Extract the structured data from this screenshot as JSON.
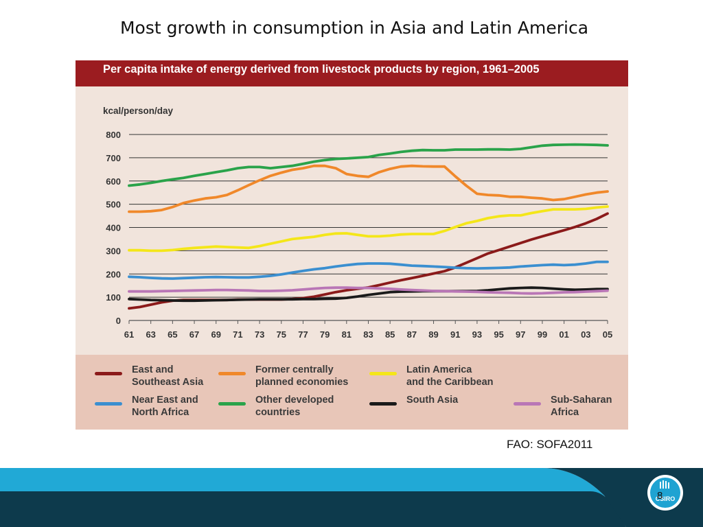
{
  "slide": {
    "title": "Most growth in consumption in Asia and Latin America",
    "credit": "FAO: SOFA2011",
    "page_number": "8",
    "logo_text": "CSIRO"
  },
  "chart_data": {
    "type": "line",
    "title": "Per capita intake of energy derived from livestock products by region, 1961–2005",
    "ylabel": "kcal/person/day",
    "xlabel": "",
    "ylim": [
      0,
      800
    ],
    "yticks": [
      "0",
      "100",
      "200",
      "300",
      "400",
      "500",
      "600",
      "700",
      "800"
    ],
    "xticks": [
      "61",
      "63",
      "65",
      "67",
      "69",
      "71",
      "73",
      "75",
      "77",
      "79",
      "81",
      "83",
      "85",
      "87",
      "89",
      "91",
      "93",
      "95",
      "97",
      "99",
      "01",
      "03",
      "05"
    ],
    "grid": "horizontal",
    "legend_position": "bottom",
    "x": [
      1961,
      1962,
      1963,
      1964,
      1965,
      1966,
      1967,
      1968,
      1969,
      1970,
      1971,
      1972,
      1973,
      1974,
      1975,
      1976,
      1977,
      1978,
      1979,
      1980,
      1981,
      1982,
      1983,
      1984,
      1985,
      1986,
      1987,
      1988,
      1989,
      1990,
      1991,
      1992,
      1993,
      1994,
      1995,
      1996,
      1997,
      1998,
      1999,
      2000,
      2001,
      2002,
      2003,
      2004,
      2005
    ],
    "series": [
      {
        "name": "East and\nSoutheast Asia",
        "color": "#8b1a1a",
        "values": [
          52,
          58,
          68,
          78,
          85,
          88,
          88,
          88,
          88,
          88,
          90,
          90,
          90,
          90,
          90,
          92,
          96,
          102,
          112,
          122,
          130,
          136,
          142,
          152,
          163,
          173,
          182,
          192,
          202,
          212,
          228,
          248,
          268,
          288,
          303,
          318,
          333,
          348,
          362,
          375,
          388,
          402,
          418,
          437,
          460
        ]
      },
      {
        "name": "Former centrally\nplanned economies",
        "color": "#f0882a",
        "values": [
          468,
          468,
          470,
          475,
          488,
          505,
          516,
          525,
          530,
          540,
          560,
          582,
          603,
          622,
          636,
          648,
          655,
          665,
          665,
          655,
          630,
          622,
          618,
          638,
          652,
          662,
          665,
          663,
          662,
          662,
          620,
          580,
          545,
          540,
          538,
          532,
          532,
          528,
          525,
          518,
          522,
          532,
          542,
          550,
          555
        ]
      },
      {
        "name": "Latin America\nand the Caribbean",
        "color": "#f4e619",
        "values": [
          302,
          302,
          300,
          300,
          303,
          308,
          312,
          315,
          318,
          316,
          314,
          312,
          320,
          330,
          340,
          350,
          355,
          360,
          368,
          374,
          375,
          368,
          362,
          362,
          365,
          370,
          372,
          372,
          372,
          385,
          402,
          418,
          428,
          440,
          448,
          452,
          452,
          462,
          470,
          478,
          478,
          478,
          480,
          486,
          490
        ]
      },
      {
        "name": "Near East and\nNorth Africa",
        "color": "#3b8fd0",
        "values": [
          188,
          186,
          183,
          181,
          180,
          182,
          184,
          186,
          187,
          186,
          185,
          185,
          188,
          192,
          198,
          206,
          213,
          220,
          225,
          232,
          238,
          243,
          245,
          245,
          244,
          240,
          236,
          234,
          232,
          230,
          227,
          225,
          224,
          225,
          226,
          228,
          232,
          235,
          238,
          240,
          238,
          240,
          245,
          252,
          252
        ]
      },
      {
        "name": "Other developed\ncountries",
        "color": "#2aa34a",
        "values": [
          580,
          585,
          592,
          600,
          607,
          613,
          622,
          630,
          638,
          646,
          655,
          660,
          660,
          655,
          660,
          665,
          674,
          683,
          690,
          695,
          697,
          700,
          703,
          712,
          718,
          725,
          730,
          733,
          732,
          732,
          735,
          735,
          735,
          736,
          736,
          735,
          738,
          745,
          752,
          755,
          756,
          757,
          756,
          755,
          753
        ]
      },
      {
        "name": "South Asia",
        "color": "#1a1a1a",
        "values": [
          92,
          90,
          88,
          87,
          86,
          85,
          85,
          86,
          87,
          88,
          89,
          90,
          91,
          91,
          91,
          91,
          92,
          92,
          93,
          94,
          97,
          103,
          110,
          116,
          122,
          124,
          125,
          126,
          126,
          126,
          126,
          126,
          127,
          130,
          134,
          138,
          140,
          141,
          140,
          137,
          134,
          132,
          133,
          135,
          135
        ]
      },
      {
        "name": "Sub-Saharan\nAfrica",
        "color": "#b976b6",
        "values": [
          125,
          125,
          125,
          126,
          127,
          128,
          129,
          130,
          131,
          131,
          130,
          129,
          127,
          127,
          128,
          130,
          133,
          137,
          140,
          141,
          141,
          140,
          140,
          138,
          136,
          133,
          131,
          129,
          127,
          126,
          125,
          124,
          123,
          121,
          120,
          119,
          117,
          116,
          117,
          119,
          121,
          122,
          124,
          126,
          128
        ]
      }
    ]
  }
}
